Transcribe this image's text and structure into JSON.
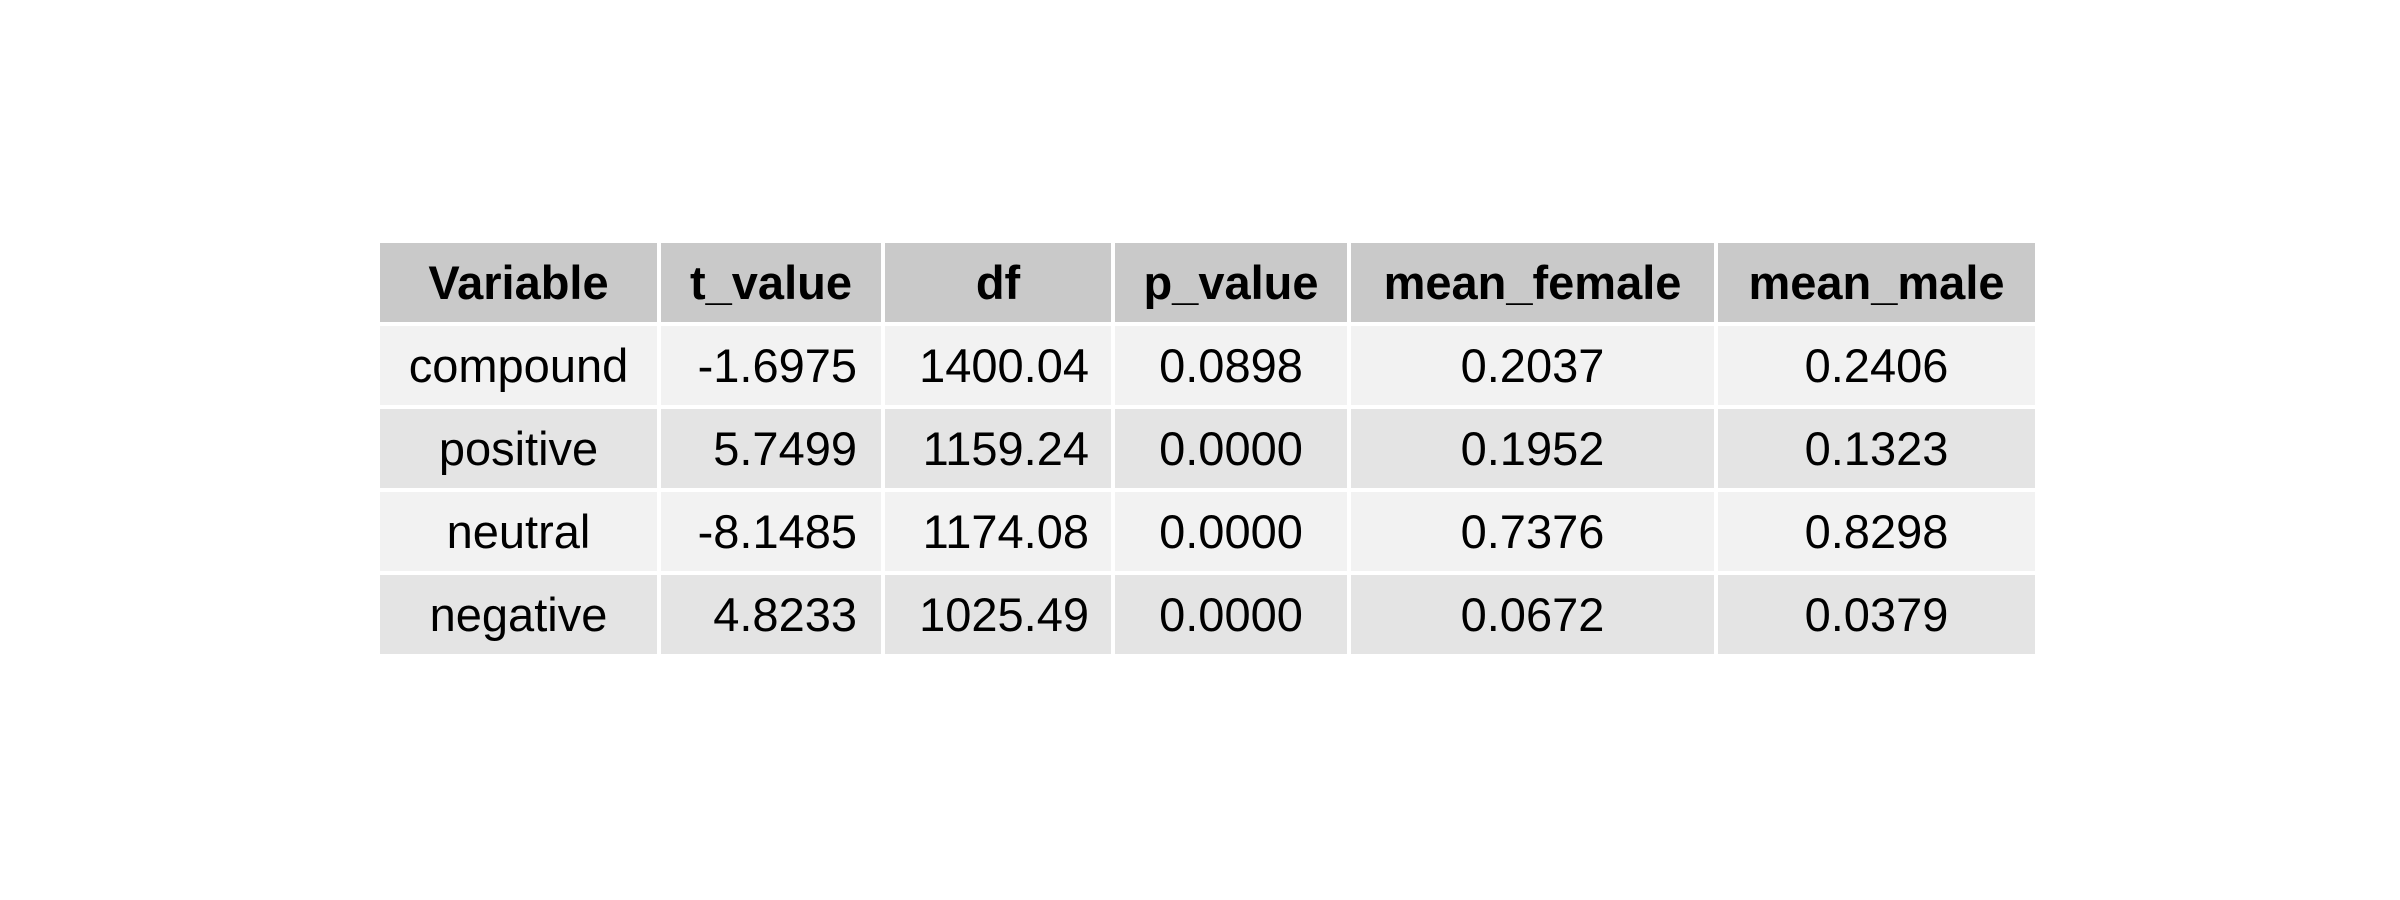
{
  "table": {
    "headers": [
      "Variable",
      "t_value",
      "df",
      "p_value",
      "mean_female",
      "mean_male"
    ],
    "rows": [
      [
        "compound",
        "-1.6975",
        "1400.04",
        "0.0898",
        "0.2037",
        "0.2406"
      ],
      [
        "positive",
        "5.7499",
        "1159.24",
        "0.0000",
        "0.1952",
        "0.1323"
      ],
      [
        "neutral",
        "-8.1485",
        "1174.08",
        "0.0000",
        "0.7376",
        "0.8298"
      ],
      [
        "negative",
        "4.8233",
        "1025.49",
        "0.0000",
        "0.0672",
        "0.0379"
      ]
    ]
  },
  "colors": {
    "header_bg": "#c9c9c9",
    "row_odd_bg": "#f2f2f2",
    "row_even_bg": "#e4e4e4",
    "border": "#ffffff"
  }
}
